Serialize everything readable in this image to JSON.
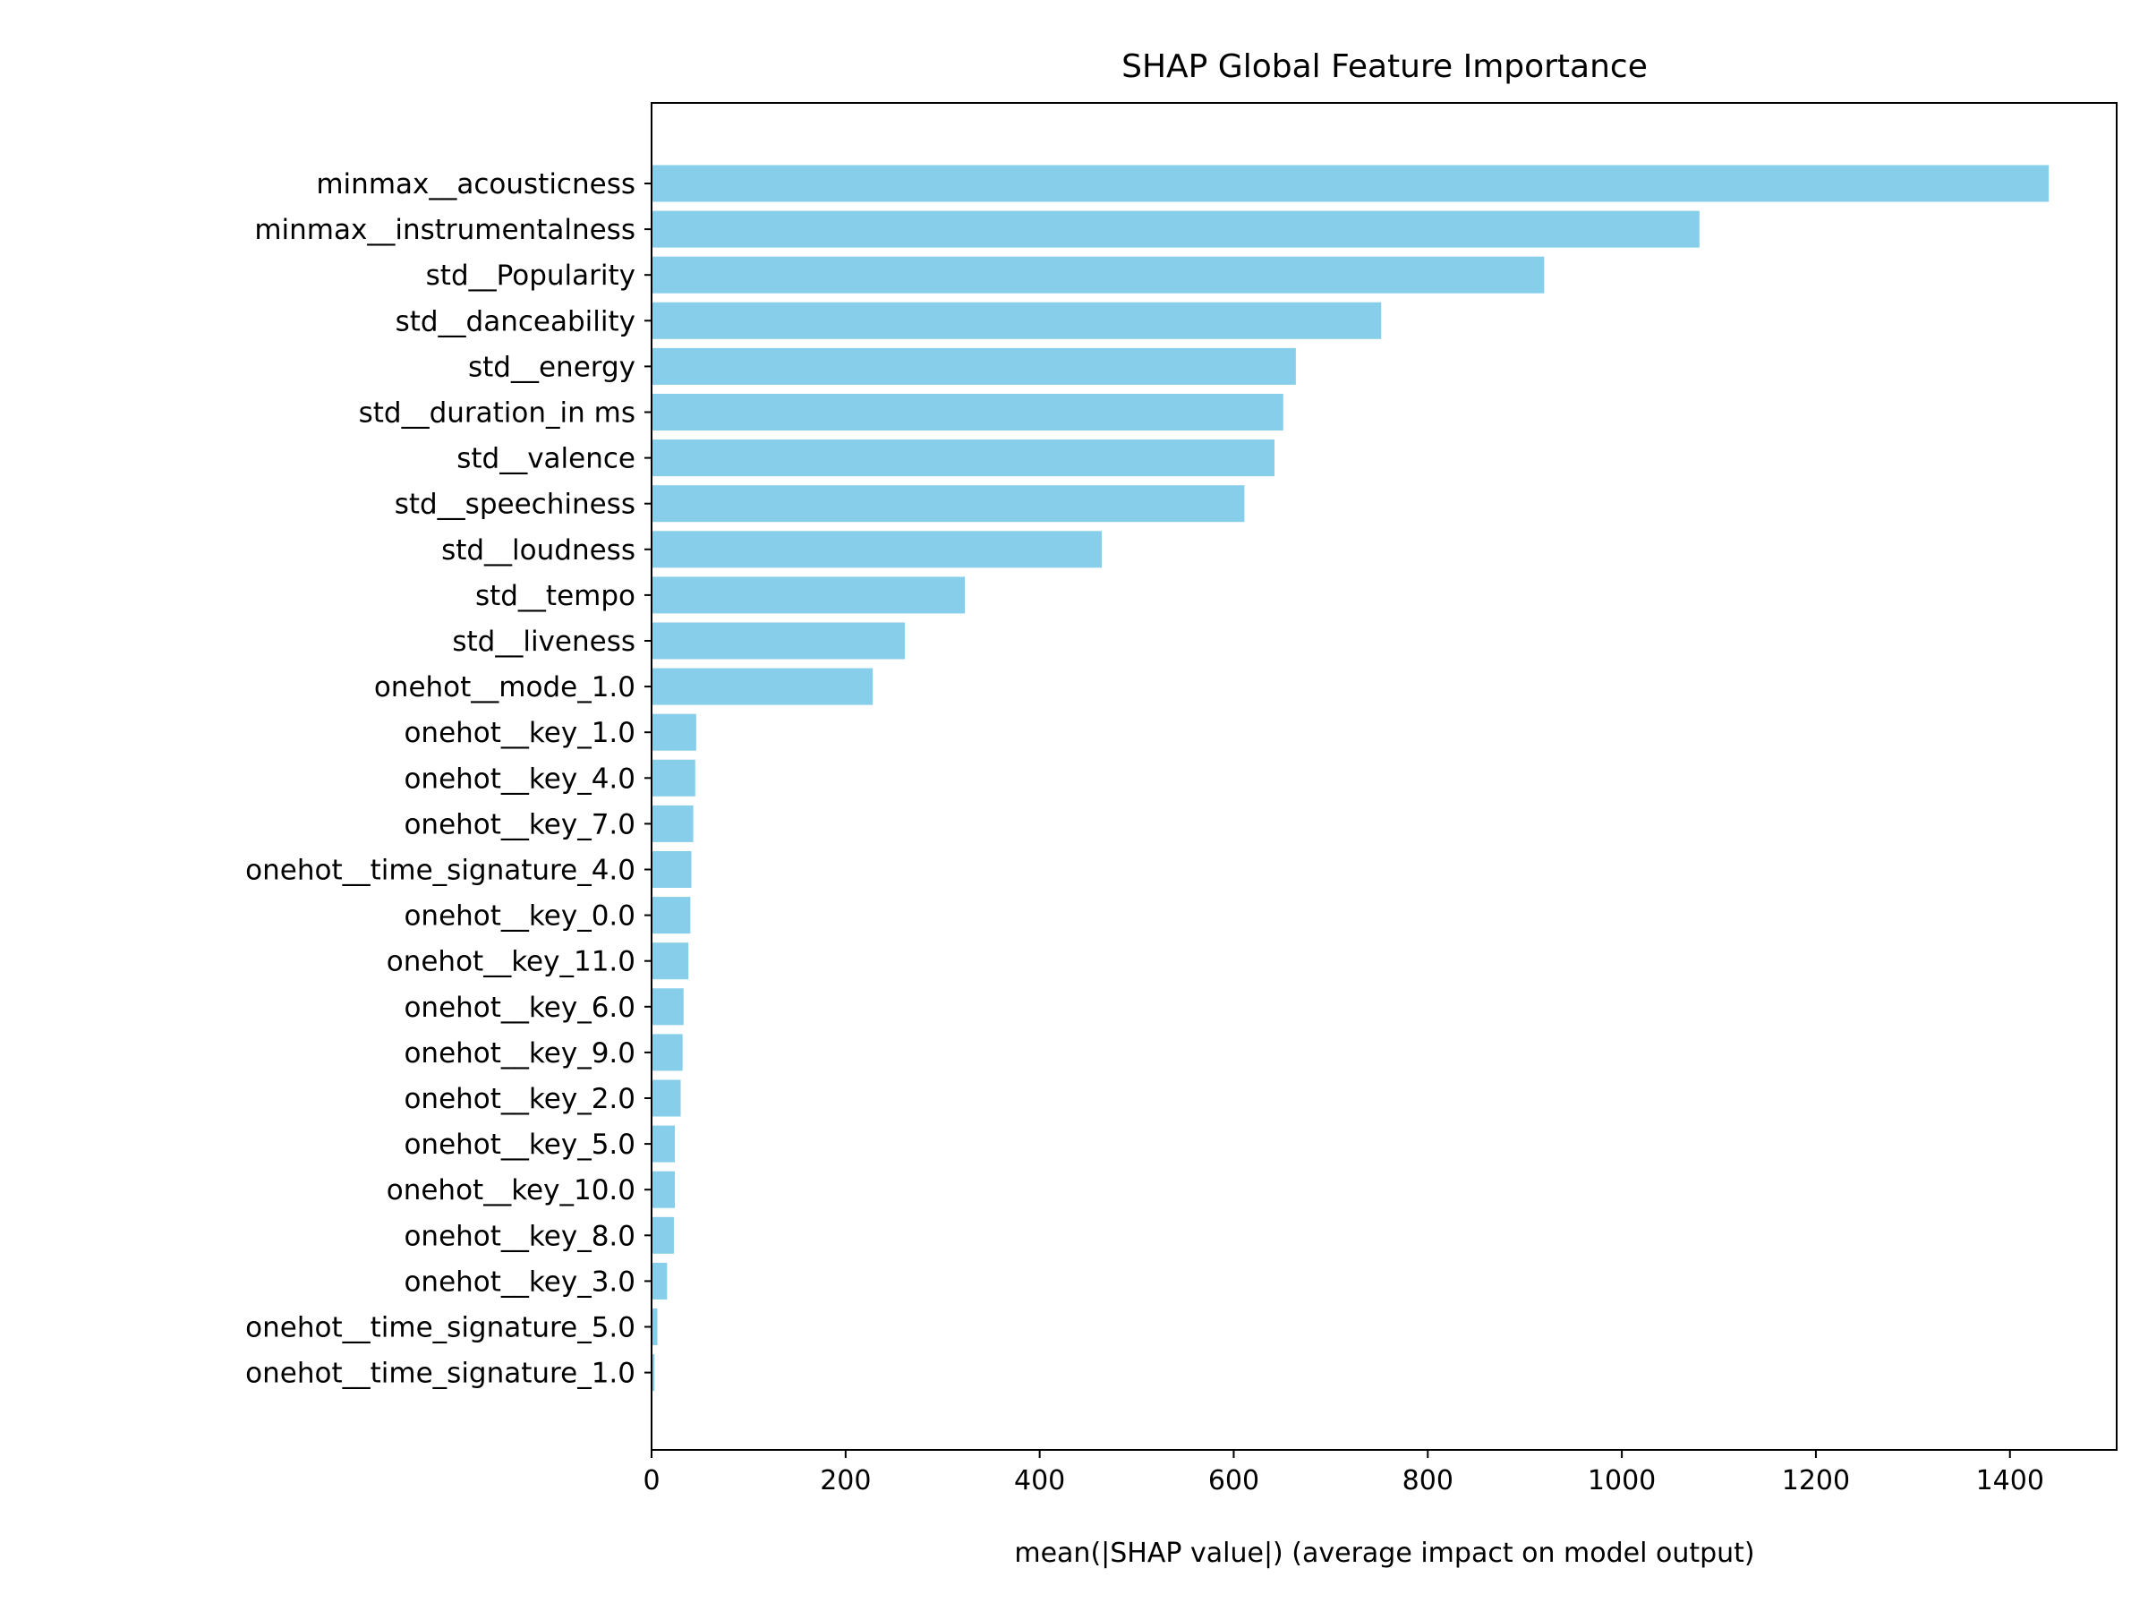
{
  "chart_data": {
    "type": "bar",
    "orientation": "horizontal",
    "title": "SHAP Global Feature Importance",
    "xlabel": "mean(|SHAP value|) (average impact on model output)",
    "ylabel": "",
    "xlim": [
      0,
      1510
    ],
    "xticks": [
      0,
      200,
      400,
      600,
      800,
      1000,
      1200,
      1400
    ],
    "bar_color": "#87ceeb",
    "grid": false,
    "categories": [
      "minmax__acousticness",
      "minmax__instrumentalness",
      "std__Popularity",
      "std__danceability",
      "std__energy",
      "std__duration_in ms",
      "std__valence",
      "std__speechiness",
      "std__loudness",
      "std__tempo",
      "std__liveness",
      "onehot__mode_1.0",
      "onehot__key_1.0",
      "onehot__key_4.0",
      "onehot__key_7.0",
      "onehot__time_signature_4.0",
      "onehot__key_0.0",
      "onehot__key_11.0",
      "onehot__key_6.0",
      "onehot__key_9.0",
      "onehot__key_2.0",
      "onehot__key_5.0",
      "onehot__key_10.0",
      "onehot__key_8.0",
      "onehot__key_3.0",
      "onehot__time_signature_5.0",
      "onehot__time_signature_1.0"
    ],
    "values": [
      1440,
      1080,
      920,
      752,
      664,
      651,
      642,
      611,
      464,
      323,
      261,
      228,
      46,
      45,
      43,
      41,
      40,
      38,
      33,
      32,
      30,
      24,
      24,
      23,
      16,
      6,
      3
    ]
  }
}
